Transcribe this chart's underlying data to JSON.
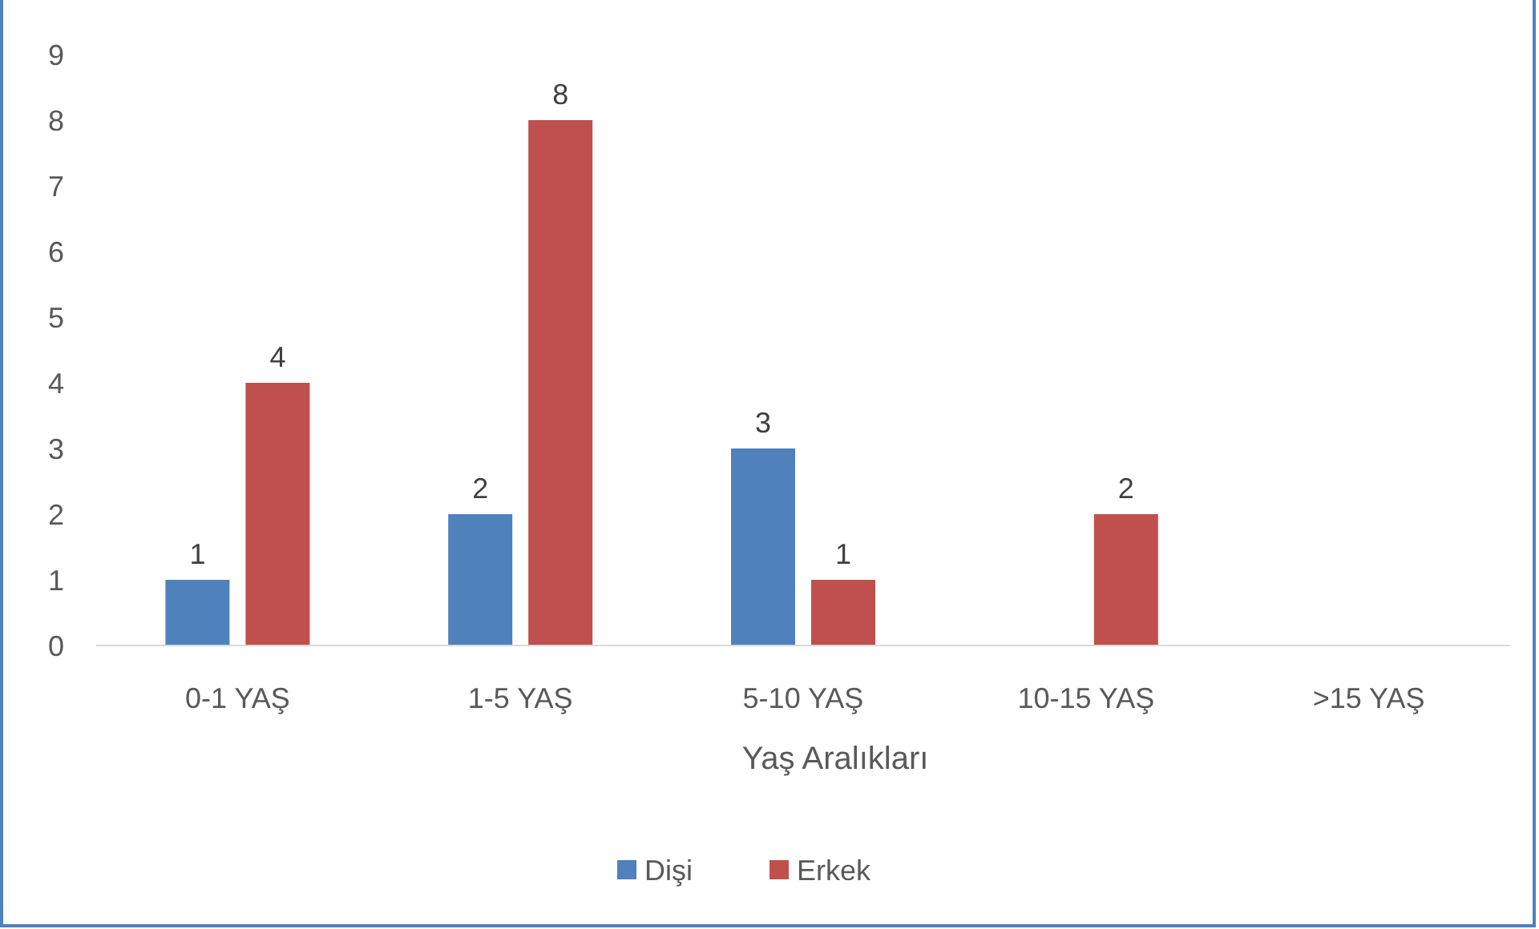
{
  "chart_data": {
    "type": "bar",
    "xlabel": "Yaş Aralıkları",
    "categories": [
      "0-1 YAŞ",
      "1-5 YAŞ",
      "5-10 YAŞ",
      "10-15 YAŞ",
      ">15 YAŞ"
    ],
    "series": [
      {
        "name": "Dişi",
        "color": "#4f81bd",
        "values": [
          1,
          2,
          3,
          null,
          null
        ]
      },
      {
        "name": "Erkek",
        "color": "#c0504d",
        "values": [
          4,
          8,
          1,
          2,
          null
        ]
      }
    ],
    "ylim": [
      0,
      9
    ],
    "yticks": [
      0,
      1,
      2,
      3,
      4,
      5,
      6,
      7,
      8,
      9
    ],
    "grid": false,
    "legend": "bottom",
    "data_labels": true
  }
}
